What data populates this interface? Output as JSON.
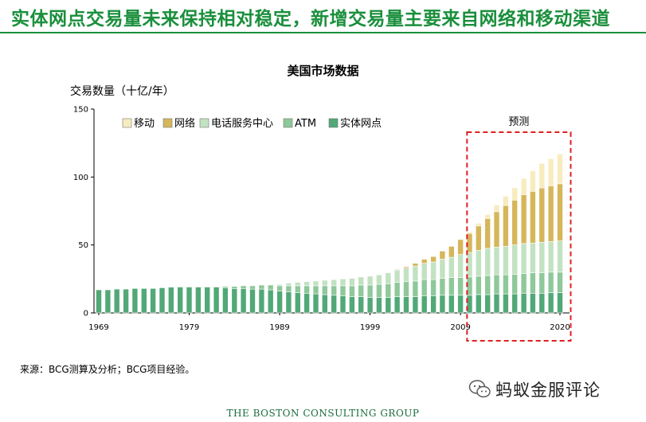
{
  "headline": "实体网点交易量未来保持相对稳定，新增交易量主要来自网络和移动渠道",
  "source": "来源：BCG测算及分析；BCG项目经验。",
  "watermark": "蚂蚁金服评论",
  "footer_logo": "THE BOSTON CONSULTING GROUP",
  "colors": {
    "headline": "#1a8f3c",
    "mobile": "#f8ebbe",
    "online": "#d6b65a",
    "callcenter": "#c2e2c2",
    "atm": "#8fc89a",
    "branch": "#52a877",
    "forecast_box": "#e02020"
  },
  "chart_data": {
    "type": "bar",
    "stacked": true,
    "title": "美国市场数据",
    "ylabel": "交易数量（十亿/年）",
    "xlabel": "",
    "ylim": [
      0,
      150
    ],
    "yticks": [
      0,
      50,
      100,
      150
    ],
    "xtick_labels": [
      "1969",
      "1979",
      "1989",
      "1999",
      "2009",
      "2020"
    ],
    "legend_position": "top-left",
    "forecast": {
      "label": "预测",
      "start_year": 2011,
      "end_year": 2020
    },
    "categories": [
      1969,
      1970,
      1971,
      1972,
      1973,
      1974,
      1975,
      1976,
      1977,
      1978,
      1979,
      1980,
      1981,
      1982,
      1983,
      1984,
      1985,
      1986,
      1987,
      1988,
      1989,
      1990,
      1991,
      1992,
      1993,
      1994,
      1995,
      1996,
      1997,
      1998,
      1999,
      2000,
      2001,
      2002,
      2003,
      2004,
      2005,
      2006,
      2007,
      2008,
      2009,
      2010,
      2011,
      2012,
      2013,
      2014,
      2015,
      2016,
      2017,
      2018,
      2019,
      2020
    ],
    "series": [
      {
        "name": "实体网点",
        "color_key": "branch",
        "values": [
          17,
          17,
          17.5,
          17.5,
          18,
          18,
          18,
          18.5,
          19,
          19,
          19,
          19,
          19,
          19,
          18.5,
          18,
          18,
          17.5,
          17.5,
          17,
          16,
          15.5,
          15,
          14.5,
          14,
          13.5,
          13,
          12.5,
          12,
          12,
          11.5,
          11.5,
          11.5,
          12,
          12,
          12,
          12.5,
          12.5,
          13,
          13,
          13,
          13,
          13.5,
          13.5,
          14,
          14,
          14,
          14.5,
          14.5,
          14.5,
          15,
          15
        ]
      },
      {
        "name": "ATM",
        "color_key": "atm",
        "values": [
          0,
          0,
          0,
          0,
          0,
          0,
          0,
          0,
          0,
          0.5,
          0.5,
          0.5,
          0.5,
          0.5,
          1,
          1.5,
          2,
          2.5,
          3,
          3.5,
          4,
          4.5,
          5,
          5.5,
          6,
          6.5,
          7,
          7.5,
          8,
          8.5,
          9,
          9.5,
          10,
          10.5,
          11,
          11.5,
          12,
          12,
          12.5,
          13,
          13,
          13.5,
          13.5,
          14,
          14,
          14,
          14.5,
          14.5,
          15,
          15,
          15,
          15
        ]
      },
      {
        "name": "电话服务中心",
        "color_key": "callcenter",
        "values": [
          0,
          0,
          0,
          0,
          0,
          0,
          0,
          0,
          0,
          0,
          0,
          0,
          0,
          0,
          0,
          0,
          0,
          0,
          0,
          0,
          1,
          2,
          2.5,
          3,
          3.5,
          4,
          4.5,
          5,
          5.5,
          6,
          6.5,
          7,
          8,
          9,
          10,
          11,
          12,
          13,
          14,
          15,
          17,
          18,
          19,
          20,
          20.5,
          21,
          21.5,
          22,
          22,
          22.5,
          22.5,
          23
        ]
      },
      {
        "name": "网络",
        "color_key": "online",
        "values": [
          0,
          0,
          0,
          0,
          0,
          0,
          0,
          0,
          0,
          0,
          0,
          0,
          0,
          0,
          0,
          0,
          0,
          0,
          0,
          0,
          0,
          0,
          0,
          0,
          0,
          0,
          0,
          0,
          0,
          0,
          0,
          0,
          0,
          0.5,
          1,
          2,
          3,
          4,
          6,
          8,
          11,
          14,
          18,
          22,
          26,
          30,
          33,
          36,
          38,
          40,
          41,
          42
        ]
      },
      {
        "name": "移动",
        "color_key": "mobile",
        "values": [
          0,
          0,
          0,
          0,
          0,
          0,
          0,
          0,
          0,
          0,
          0,
          0,
          0,
          0,
          0,
          0,
          0,
          0,
          0,
          0,
          0,
          0,
          0,
          0,
          0,
          0,
          0,
          0,
          0,
          0,
          0,
          0,
          0,
          0,
          0,
          0,
          0,
          0,
          0,
          0,
          0.5,
          1,
          2,
          3,
          5,
          7,
          9,
          12,
          15,
          18,
          20,
          22
        ]
      }
    ]
  }
}
